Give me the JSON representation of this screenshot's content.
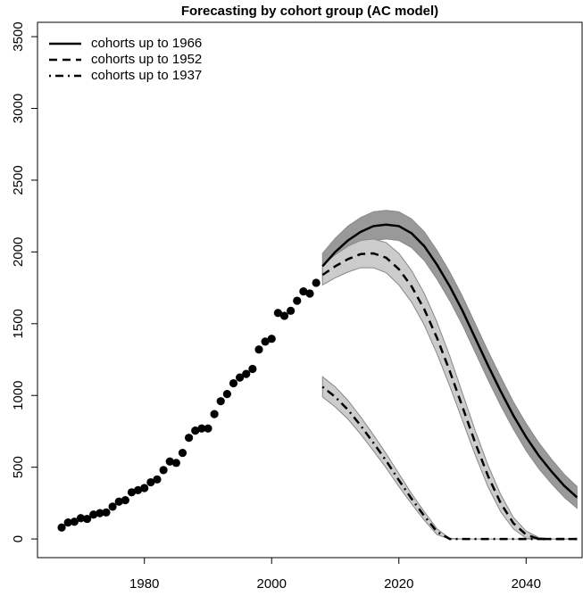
{
  "chart_data": {
    "type": "line",
    "title": "Forecasting by cohort group (AC model)",
    "xlim": [
      1963.2,
      2048.8
    ],
    "ylim": [
      -130,
      3600
    ],
    "xticks": [
      1980,
      2000,
      2020,
      2040
    ],
    "yticks": [
      0,
      500,
      1000,
      1500,
      2000,
      2500,
      3000,
      3500
    ],
    "legend_position": "topleft",
    "observed": {
      "color": "#000000",
      "x": [
        1967,
        1968,
        1969,
        1970,
        1971,
        1972,
        1973,
        1974,
        1975,
        1976,
        1977,
        1978,
        1979,
        1980,
        1981,
        1982,
        1983,
        1984,
        1985,
        1986,
        1987,
        1988,
        1989,
        1990,
        1991,
        1992,
        1993,
        1994,
        1995,
        1996,
        1997,
        1998,
        1999,
        2000,
        2001,
        2002,
        2003,
        2004,
        2005,
        2006,
        2007
      ],
      "values": [
        80,
        115,
        120,
        145,
        140,
        170,
        180,
        185,
        225,
        260,
        270,
        325,
        340,
        355,
        395,
        415,
        480,
        540,
        530,
        600,
        705,
        755,
        770,
        770,
        870,
        960,
        1010,
        1085,
        1125,
        1150,
        1185,
        1320,
        1375,
        1395,
        1575,
        1555,
        1590,
        1660,
        1725,
        1710,
        1785
      ]
    },
    "x": [
      2008,
      2010,
      2012,
      2014,
      2016,
      2018,
      2020,
      2022,
      2024,
      2026,
      2028,
      2030,
      2032,
      2034,
      2036,
      2038,
      2040,
      2042,
      2044,
      2046,
      2048
    ],
    "series": [
      {
        "name": "cohorts up to 1966",
        "color": "#000000",
        "line_style": "solid",
        "band_color": "#999999",
        "values": [
          1900,
          2000,
          2080,
          2140,
          2180,
          2190,
          2180,
          2130,
          2040,
          1910,
          1760,
          1590,
          1400,
          1210,
          1030,
          860,
          710,
          580,
          470,
          370,
          290
        ],
        "upper": [
          1990,
          2095,
          2180,
          2240,
          2280,
          2290,
          2280,
          2230,
          2140,
          2010,
          1860,
          1690,
          1500,
          1310,
          1130,
          955,
          805,
          670,
          555,
          450,
          365
        ],
        "lower": [
          1810,
          1905,
          1980,
          2040,
          2080,
          2090,
          2080,
          2030,
          1940,
          1810,
          1660,
          1490,
          1300,
          1110,
          930,
          765,
          615,
          490,
          385,
          290,
          215
        ]
      },
      {
        "name": "cohorts up to 1952",
        "color": "#000000",
        "line_style": "dashed",
        "band_color": "#cccccc",
        "values": [
          1840,
          1900,
          1950,
          1985,
          1990,
          1960,
          1880,
          1760,
          1600,
          1400,
          1170,
          920,
          670,
          440,
          250,
          110,
          30,
          0,
          0,
          0,
          0
        ],
        "upper": [
          1910,
          1980,
          2040,
          2080,
          2090,
          2065,
          1990,
          1870,
          1710,
          1510,
          1275,
          1015,
          755,
          515,
          310,
          150,
          55,
          10,
          0,
          0,
          0
        ],
        "lower": [
          1770,
          1820,
          1860,
          1890,
          1890,
          1855,
          1770,
          1650,
          1490,
          1290,
          1065,
          825,
          585,
          365,
          190,
          70,
          5,
          0,
          0,
          0,
          0
        ]
      },
      {
        "name": "cohorts up to 1937",
        "color": "#000000",
        "line_style": "dotdash",
        "band_color": "#cccccc",
        "values": [
          1060,
          990,
          900,
          790,
          670,
          545,
          410,
          280,
          160,
          50,
          0,
          0,
          0,
          0,
          0,
          0,
          0,
          0,
          0,
          0,
          0
        ],
        "upper": [
          1130,
          1060,
          965,
          850,
          725,
          595,
          455,
          315,
          190,
          70,
          5,
          0,
          0,
          0,
          0,
          0,
          0,
          0,
          0,
          0,
          0
        ],
        "lower": [
          990,
          920,
          835,
          730,
          615,
          495,
          365,
          245,
          130,
          30,
          0,
          0,
          0,
          0,
          0,
          0,
          0,
          0,
          0,
          0,
          0
        ]
      }
    ]
  }
}
